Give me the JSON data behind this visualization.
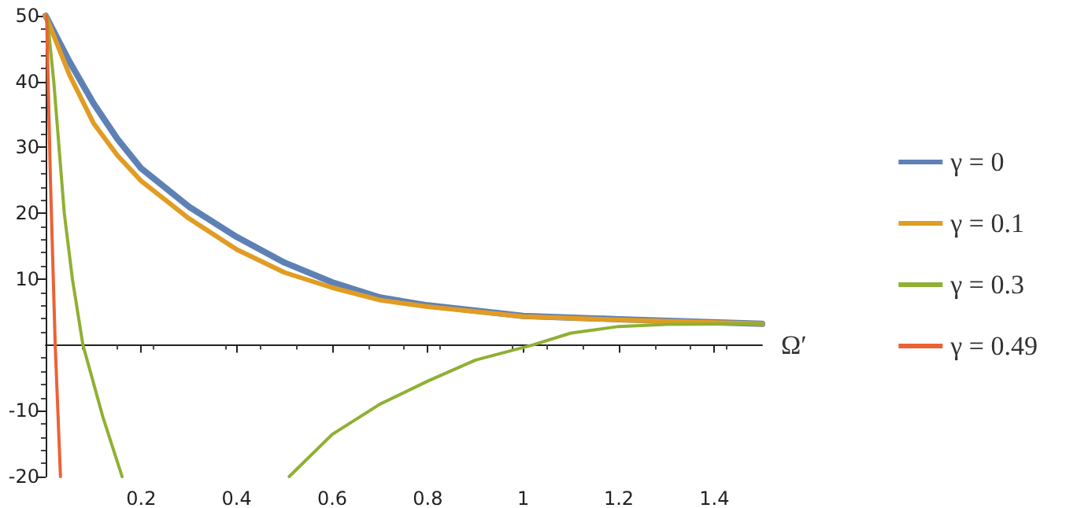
{
  "chart_data": {
    "type": "line",
    "xlabel": "Ω′",
    "xlim": [
      0,
      1.5
    ],
    "ylim": [
      -20,
      50
    ],
    "xticks": [
      0.2,
      0.4,
      0.6,
      0.8,
      1.0,
      1.2,
      1.4
    ],
    "yticks": [
      -20,
      -10,
      10,
      20,
      30,
      40,
      50
    ],
    "grid": false,
    "legend": "right",
    "marker": "none",
    "line_style": "solid",
    "series": [
      {
        "name": "γ = 0",
        "color": "#5e81b5",
        "x": [
          0.0,
          0.05,
          0.1,
          0.15,
          0.2,
          0.3,
          0.4,
          0.5,
          0.6,
          0.7,
          0.8,
          1.0,
          1.2,
          1.5
        ],
        "values": [
          50,
          43,
          36.7,
          31.3,
          26.8,
          21,
          16.4,
          12.5,
          9.5,
          7.2,
          6.0,
          4.4,
          3.9,
          3.2
        ]
      },
      {
        "name": "γ = 0.1",
        "color": "#e19c24",
        "x": [
          0.0,
          0.05,
          0.1,
          0.15,
          0.2,
          0.3,
          0.4,
          0.5,
          0.6,
          0.7,
          0.8,
          1.0,
          1.2,
          1.5
        ],
        "values": [
          50,
          41,
          33.7,
          28.8,
          24.9,
          19.2,
          14.5,
          11,
          8.7,
          6.8,
          5.8,
          4.3,
          3.8,
          3.2
        ]
      },
      {
        "name": "γ = 0.3",
        "color": "#8fb032",
        "x": [
          0.003,
          0.017,
          0.039,
          0.056,
          0.078,
          0.12,
          0.16,
          null,
          0.51,
          0.6,
          0.7,
          0.8,
          0.9,
          1.02,
          1.1,
          1.2,
          1.3,
          1.5
        ],
        "values": [
          50,
          40,
          20,
          10,
          0,
          -11,
          -20,
          null,
          -20,
          -13.6,
          -9,
          -5.5,
          -2.3,
          0,
          1.8,
          2.8,
          3.1,
          3.2
        ]
      },
      {
        "name": "γ = 0.49",
        "color": "#eb6235",
        "x": [
          0.002,
          0.01,
          0.02,
          0.031
        ],
        "values": [
          50,
          25,
          0,
          -20
        ]
      }
    ]
  }
}
